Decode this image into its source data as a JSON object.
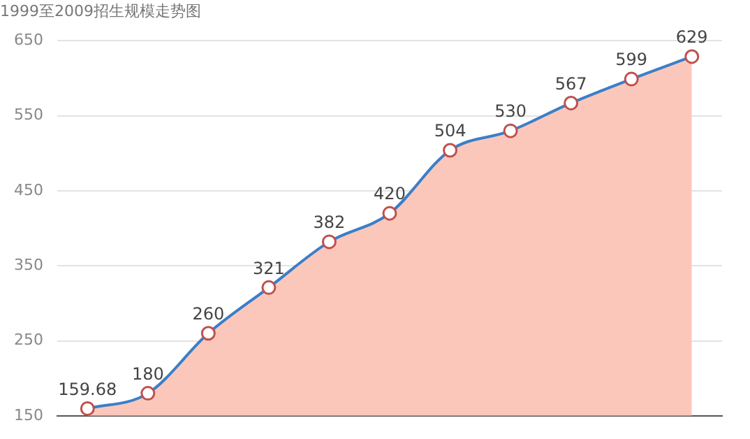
{
  "chart_data": {
    "type": "area",
    "title": "1999至2009招生规模走势图",
    "categories": [
      null,
      null,
      null,
      null,
      null,
      null,
      null,
      null,
      null,
      null,
      null
    ],
    "series": [
      {
        "type": "line",
        "color": "#3a7fc8",
        "values": [
          159.68,
          180,
          260,
          321,
          382,
          420,
          504,
          530,
          567,
          599,
          629
        ],
        "value_labels": [
          "159.68",
          "180",
          "260",
          "321",
          "382",
          "420",
          "504",
          "530",
          "567",
          "599",
          "629"
        ]
      },
      {
        "type": "area",
        "color": "#fcc7bb",
        "marker": "none",
        "values": [
          159.68,
          180,
          260,
          321,
          382,
          420,
          504,
          530,
          567,
          599,
          629
        ],
        "value_labels": [
          null,
          null,
          null,
          null,
          null,
          null,
          null,
          null,
          null,
          null,
          null
        ]
      }
    ],
    "ylim": [
      150,
      650
    ],
    "yticks": [
      150,
      250,
      350,
      450,
      550,
      650
    ],
    "grid": "y",
    "legend": false,
    "marker": "circle",
    "tick_labels": "y"
  }
}
